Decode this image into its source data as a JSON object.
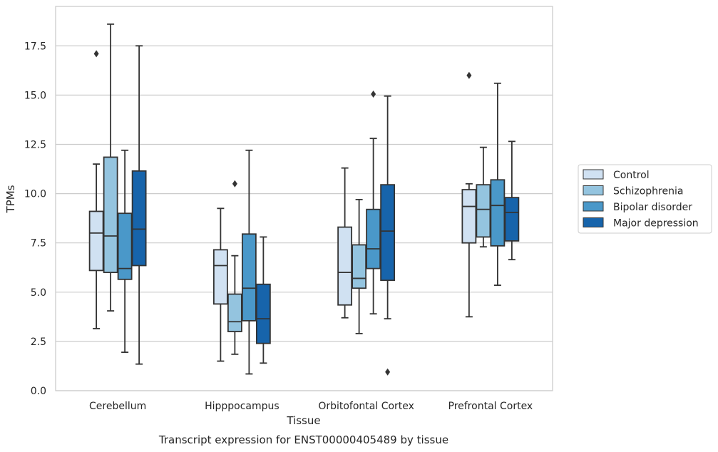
{
  "chart_data": {
    "type": "boxplot",
    "caption": "Transcript expression for ENST00000405489 by tissue",
    "xlabel": "Tissue",
    "ylabel": "TPMs",
    "ylim": [
      0,
      19.5
    ],
    "yticks": [
      0.0,
      2.5,
      5.0,
      7.5,
      10.0,
      12.5,
      15.0,
      17.5
    ],
    "ytick_labels": [
      "0.0",
      "2.5",
      "5.0",
      "7.5",
      "10.0",
      "12.5",
      "15.0",
      "17.5"
    ],
    "grid": "horizontal",
    "legend_position": "right",
    "categories": [
      "Cerebellum",
      "Hipppocampus",
      "Orbitofontal Cortex",
      "Prefrontal Cortex"
    ],
    "series": [
      {
        "name": "Control",
        "color": "#d0e1f2",
        "boxes": [
          {
            "whisker_low": 3.15,
            "q1": 6.1,
            "median": 8.0,
            "q3": 9.1,
            "whisker_high": 11.5,
            "outliers": [
              17.1
            ]
          },
          {
            "whisker_low": 1.5,
            "q1": 4.4,
            "median": 6.35,
            "q3": 7.15,
            "whisker_high": 9.25,
            "outliers": []
          },
          {
            "whisker_low": 3.7,
            "q1": 4.35,
            "median": 6.0,
            "q3": 8.3,
            "whisker_high": 11.3,
            "outliers": []
          },
          {
            "whisker_low": 3.75,
            "q1": 7.5,
            "median": 9.35,
            "q3": 10.2,
            "whisker_high": 10.5,
            "outliers": [
              16.0
            ]
          }
        ]
      },
      {
        "name": "Schizophrenia",
        "color": "#94c4df",
        "boxes": [
          {
            "whisker_low": 4.05,
            "q1": 6.0,
            "median": 7.85,
            "q3": 11.85,
            "whisker_high": 18.6,
            "outliers": []
          },
          {
            "whisker_low": 1.85,
            "q1": 3.0,
            "median": 3.5,
            "q3": 4.9,
            "whisker_high": 6.85,
            "outliers": [
              10.5
            ]
          },
          {
            "whisker_low": 2.9,
            "q1": 5.2,
            "median": 5.7,
            "q3": 7.4,
            "whisker_high": 9.7,
            "outliers": []
          },
          {
            "whisker_low": 7.3,
            "q1": 7.8,
            "median": 9.2,
            "q3": 10.45,
            "whisker_high": 12.35,
            "outliers": []
          }
        ]
      },
      {
        "name": "Bipolar disorder",
        "color": "#4a98c9",
        "boxes": [
          {
            "whisker_low": 1.95,
            "q1": 5.65,
            "median": 6.2,
            "q3": 9.0,
            "whisker_high": 12.2,
            "outliers": []
          },
          {
            "whisker_low": 0.85,
            "q1": 3.55,
            "median": 5.2,
            "q3": 7.95,
            "whisker_high": 12.2,
            "outliers": []
          },
          {
            "whisker_low": 3.9,
            "q1": 6.2,
            "median": 7.2,
            "q3": 9.2,
            "whisker_high": 12.8,
            "outliers": [
              15.05
            ]
          },
          {
            "whisker_low": 5.35,
            "q1": 7.35,
            "median": 9.4,
            "q3": 10.7,
            "whisker_high": 15.6,
            "outliers": []
          }
        ]
      },
      {
        "name": "Major depression",
        "color": "#1764ab",
        "boxes": [
          {
            "whisker_low": 1.35,
            "q1": 6.35,
            "median": 8.2,
            "q3": 11.15,
            "whisker_high": 17.5,
            "outliers": []
          },
          {
            "whisker_low": 1.4,
            "q1": 2.4,
            "median": 3.65,
            "q3": 5.4,
            "whisker_high": 7.8,
            "outliers": []
          },
          {
            "whisker_low": 3.65,
            "q1": 5.6,
            "median": 8.1,
            "q3": 10.45,
            "whisker_high": 14.95,
            "outliers": [
              0.95
            ]
          },
          {
            "whisker_low": 6.65,
            "q1": 7.6,
            "median": 9.05,
            "q3": 9.8,
            "whisker_high": 12.65,
            "outliers": []
          }
        ]
      }
    ]
  }
}
